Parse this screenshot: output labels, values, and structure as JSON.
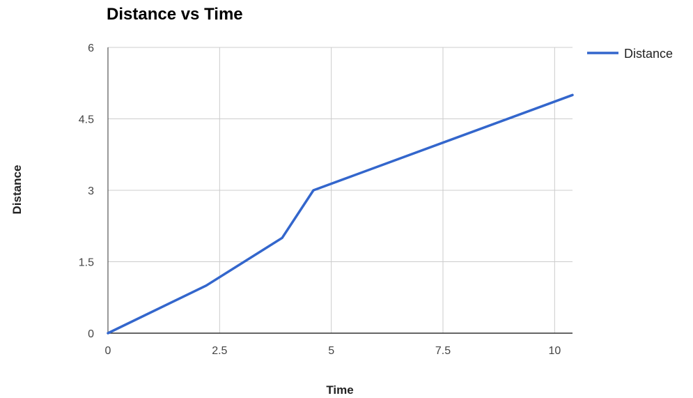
{
  "chart_data": {
    "type": "line",
    "title": "Distance vs Time",
    "xlabel": "Time",
    "ylabel": "Distance",
    "xlim": [
      0,
      10.4
    ],
    "ylim": [
      0,
      6
    ],
    "x_ticks": [
      "0",
      "2.5",
      "5",
      "7.5",
      "10"
    ],
    "y_ticks": [
      "0",
      "1.5",
      "3",
      "4.5",
      "6"
    ],
    "grid": true,
    "legend_position": "right",
    "series": [
      {
        "name": "Distance",
        "color": "#3366cc",
        "x": [
          0,
          2.2,
          3.9,
          4.6,
          10.4
        ],
        "y": [
          0,
          1,
          2,
          3,
          5
        ]
      }
    ]
  }
}
